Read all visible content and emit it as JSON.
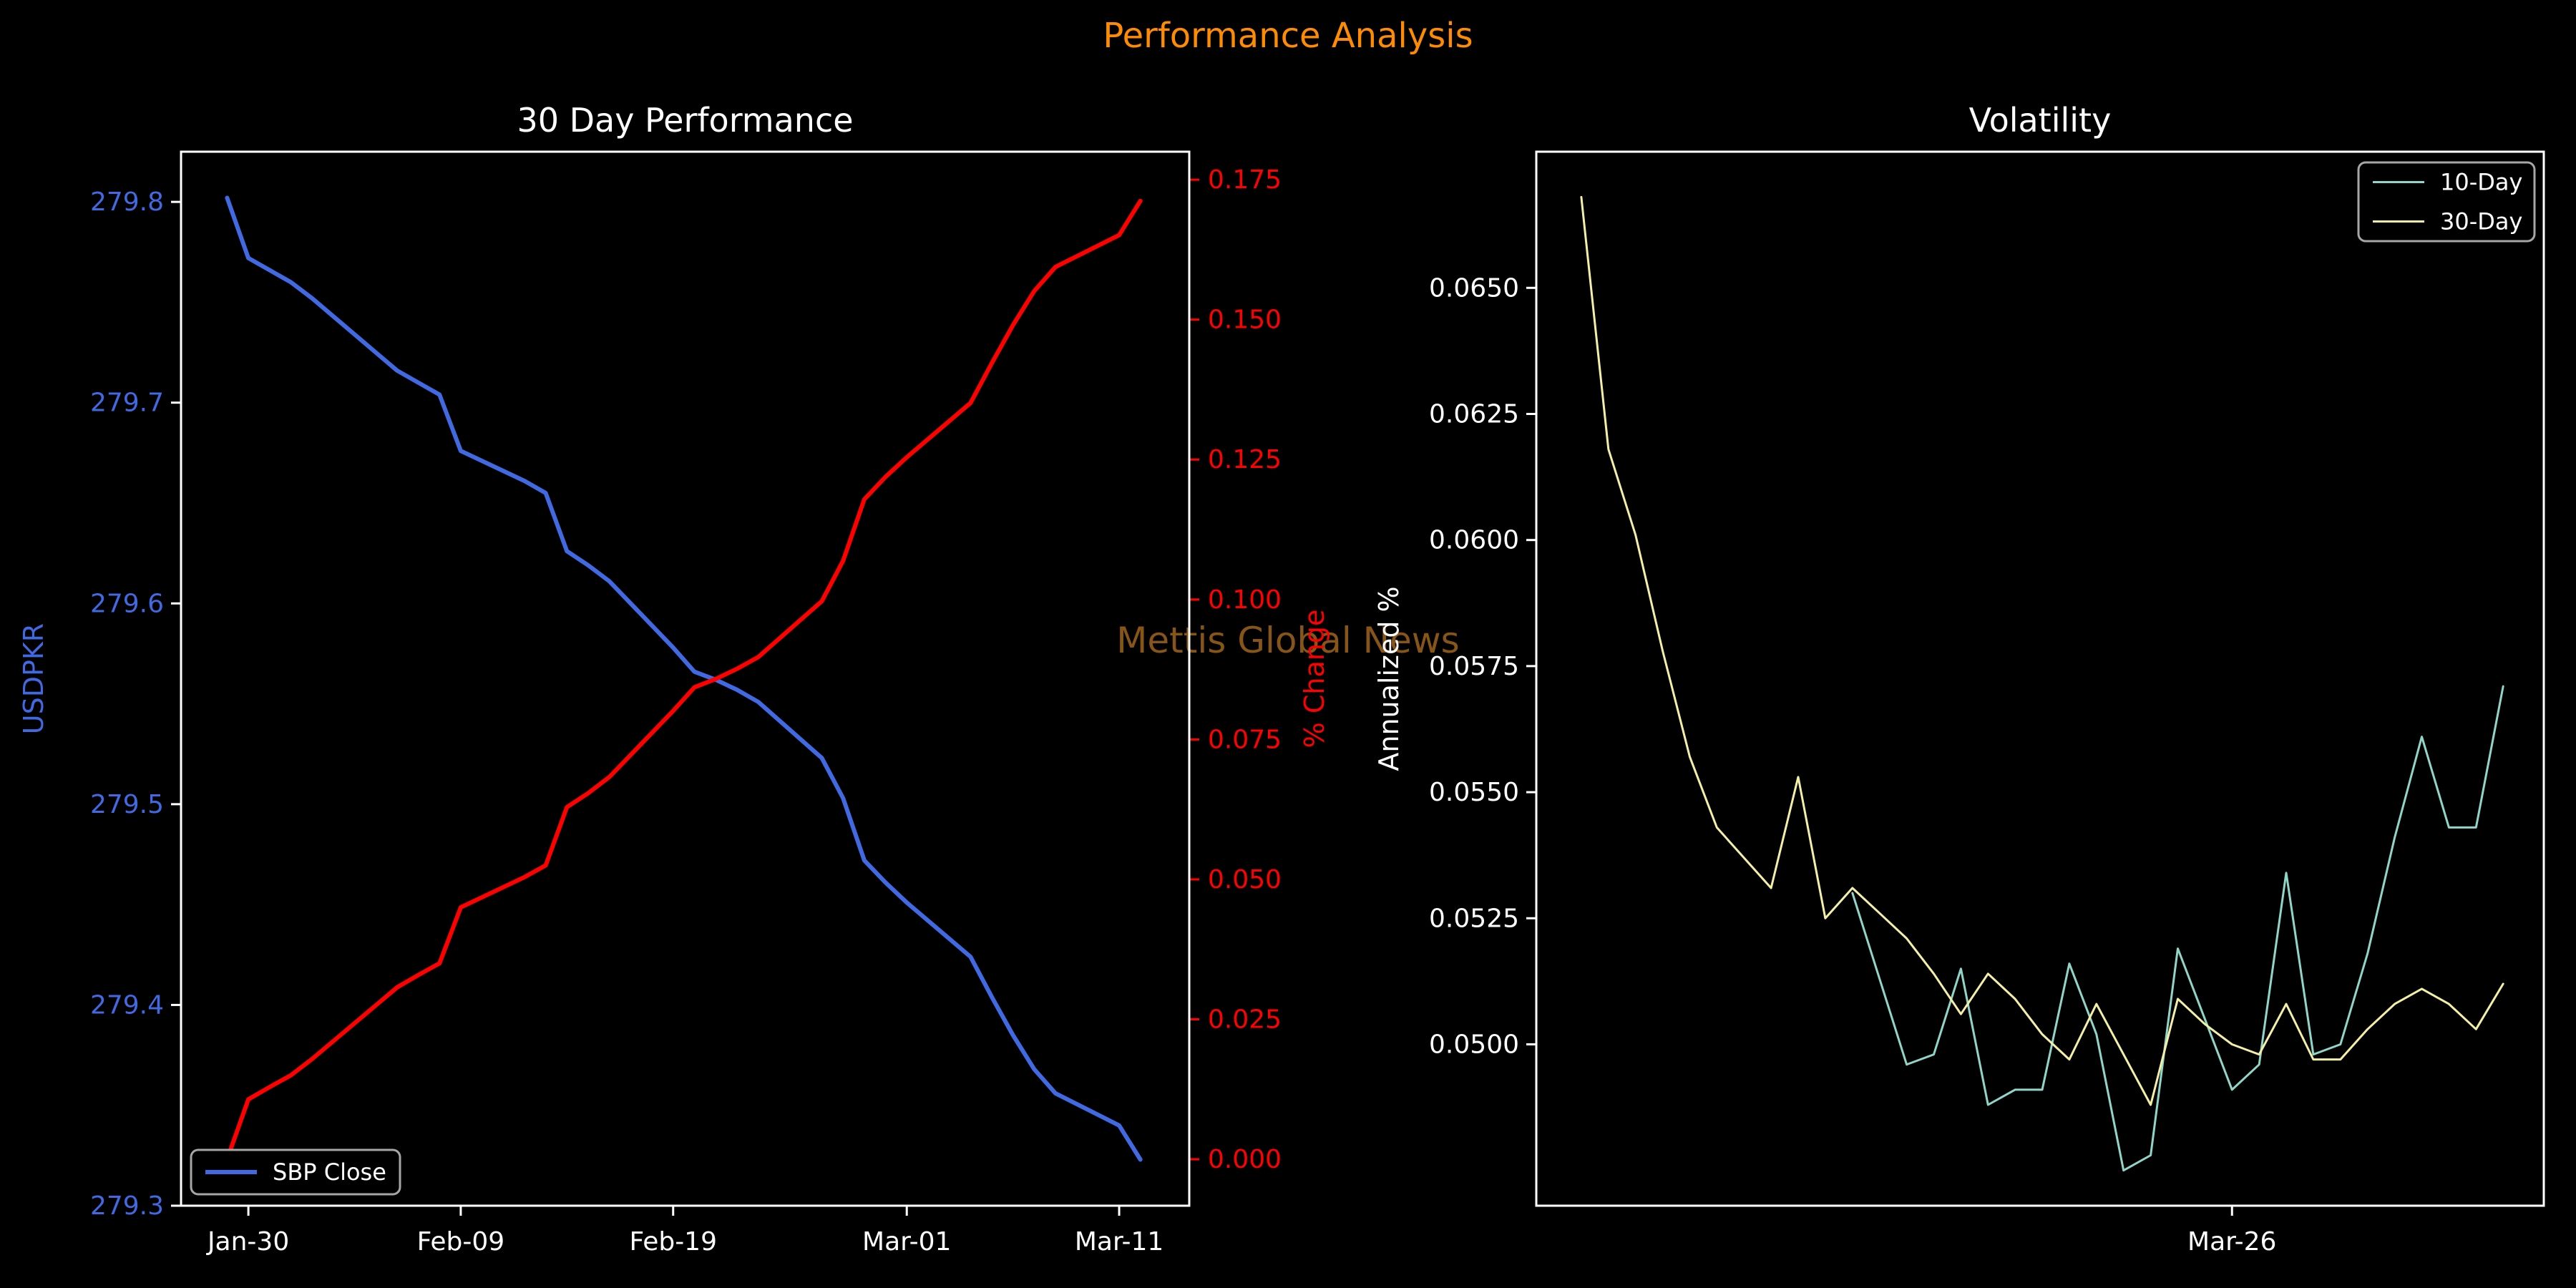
{
  "figure": {
    "suptitle": "Performance Analysis",
    "suptitle_color": "#ff8c00",
    "watermark": "Mettis Global News",
    "watermark_color": "#8f5a1a",
    "background": "#000000",
    "spine_color": "#ffffff"
  },
  "chart_data": [
    {
      "type": "line",
      "title": "30 Day Performance",
      "title_color": "#ffffff",
      "x_axis": {
        "tick_labels": [
          "Jan-30",
          "Feb-09",
          "Feb-19",
          "Mar-01",
          "Mar-11"
        ],
        "tick_positions": [
          1,
          11,
          21,
          32,
          42
        ],
        "xlim": [
          -2.17,
          45.3
        ],
        "label_color": "#ffffff"
      },
      "left_axis": {
        "label": "USDPKR",
        "color": "#4169e1",
        "tick_labels": [
          "279.8",
          "279.7",
          "279.6",
          "279.5",
          "279.4",
          "279.3"
        ],
        "tick_values": [
          279.8,
          279.7,
          279.6,
          279.5,
          279.4,
          279.3
        ],
        "ylim": [
          279.3,
          279.825
        ]
      },
      "right_axis": {
        "label": "% Change",
        "color": "#ff0000",
        "tick_labels": [
          "0.175",
          "0.150",
          "0.125",
          "0.100",
          "0.075",
          "0.050",
          "0.025",
          "0.000"
        ],
        "tick_values": [
          0.175,
          0.15,
          0.125,
          0.1,
          0.075,
          0.05,
          0.025,
          0.0
        ],
        "ylim": [
          -0.0083,
          0.18
        ]
      },
      "series": [
        {
          "name": "SBP Close",
          "color": "#4169e1",
          "axis": "left",
          "width": 6,
          "x": [
            0,
            1,
            2,
            3,
            4,
            7,
            8,
            9,
            10,
            11,
            14,
            15,
            16,
            17,
            18,
            21,
            22,
            23,
            24,
            25,
            28,
            29,
            30,
            31,
            32,
            35,
            36,
            37,
            38,
            39,
            42,
            43
          ],
          "values": [
            279.802,
            279.772,
            279.766,
            279.76,
            279.752,
            279.725,
            279.716,
            279.71,
            279.704,
            279.676,
            279.661,
            279.655,
            279.626,
            279.619,
            279.611,
            279.578,
            279.566,
            279.562,
            279.557,
            279.551,
            279.523,
            279.503,
            279.472,
            279.461,
            279.451,
            279.424,
            279.404,
            279.385,
            279.368,
            279.356,
            279.34,
            279.323
          ]
        },
        {
          "name": "% Change",
          "color": "#ff0000",
          "axis": "right",
          "width": 6,
          "x": [
            0,
            1,
            2,
            3,
            4,
            7,
            8,
            9,
            10,
            11,
            14,
            15,
            16,
            17,
            18,
            21,
            22,
            23,
            24,
            25,
            28,
            29,
            30,
            31,
            32,
            35,
            36,
            37,
            38,
            39,
            42,
            43
          ],
          "values": [
            0.0,
            0.0107,
            0.0129,
            0.015,
            0.0179,
            0.0275,
            0.0307,
            0.0329,
            0.035,
            0.045,
            0.0504,
            0.0525,
            0.0629,
            0.0654,
            0.0683,
            0.0801,
            0.0843,
            0.0858,
            0.0876,
            0.0897,
            0.0997,
            0.1069,
            0.1179,
            0.1219,
            0.1254,
            0.1351,
            0.1422,
            0.149,
            0.1551,
            0.1594,
            0.1651,
            0.1712
          ]
        }
      ],
      "legend": {
        "position": "lower-left",
        "entries": [
          "SBP Close"
        ],
        "entry_colors": [
          "#4169e1"
        ]
      }
    },
    {
      "type": "line",
      "title": "Volatility",
      "title_color": "#ffffff",
      "x_axis": {
        "tick_labels": [
          "Mar-26"
        ],
        "tick_positions": [
          24
        ],
        "xlim": [
          -1.66,
          35.5
        ],
        "label_color": "#ffffff"
      },
      "left_axis": {
        "label": "Annualized %",
        "color": "#ffffff",
        "tick_labels": [
          "0.0650",
          "0.0625",
          "0.0600",
          "0.0575",
          "0.0550",
          "0.0525",
          "0.0500"
        ],
        "tick_values": [
          0.065,
          0.0625,
          0.06,
          0.0575,
          0.055,
          0.0525,
          0.05
        ],
        "ylim": [
          0.0468,
          0.0677
        ]
      },
      "series": [
        {
          "name": "10-Day",
          "color": "#8fd5c8",
          "axis": "left",
          "width": 3,
          "x": [
            10,
            11,
            12,
            13,
            14,
            15,
            16,
            17,
            18,
            19,
            20,
            21,
            22,
            23,
            24,
            25,
            26,
            27,
            28,
            29,
            30,
            31,
            32,
            33,
            34
          ],
          "values": [
            0.053,
            0.0513,
            0.0496,
            0.0498,
            0.0515,
            0.0488,
            0.0491,
            0.0491,
            0.0516,
            0.0502,
            0.0475,
            0.0478,
            0.0519,
            0.0505,
            0.0491,
            0.0496,
            0.0534,
            0.0498,
            0.05,
            0.0518,
            0.0541,
            0.0561,
            0.0543,
            0.0543,
            0.0571
          ]
        },
        {
          "name": "30-Day",
          "color": "#f4efa6",
          "axis": "left",
          "width": 3,
          "x": [
            0,
            1,
            2,
            3,
            4,
            5,
            6,
            7,
            8,
            9,
            10,
            11,
            12,
            13,
            14,
            15,
            16,
            17,
            18,
            19,
            20,
            21,
            22,
            23,
            24,
            25,
            26,
            27,
            28,
            29,
            30,
            31,
            32,
            33,
            34
          ],
          "values": [
            0.0668,
            0.0618,
            0.0601,
            0.0578,
            0.0557,
            0.0543,
            0.0537,
            0.0531,
            0.0553,
            0.0525,
            0.0531,
            0.0526,
            0.0521,
            0.0514,
            0.0506,
            0.0514,
            0.0509,
            0.0502,
            0.0497,
            0.0508,
            0.0498,
            0.0488,
            0.0509,
            0.0504,
            0.05,
            0.0498,
            0.0508,
            0.0497,
            0.0497,
            0.0503,
            0.0508,
            0.0511,
            0.0508,
            0.0503,
            0.0512
          ]
        }
      ],
      "legend": {
        "position": "upper-right",
        "entries": [
          "10-Day",
          "30-Day"
        ],
        "entry_colors": [
          "#8fd5c8",
          "#f4efa6"
        ]
      }
    }
  ]
}
